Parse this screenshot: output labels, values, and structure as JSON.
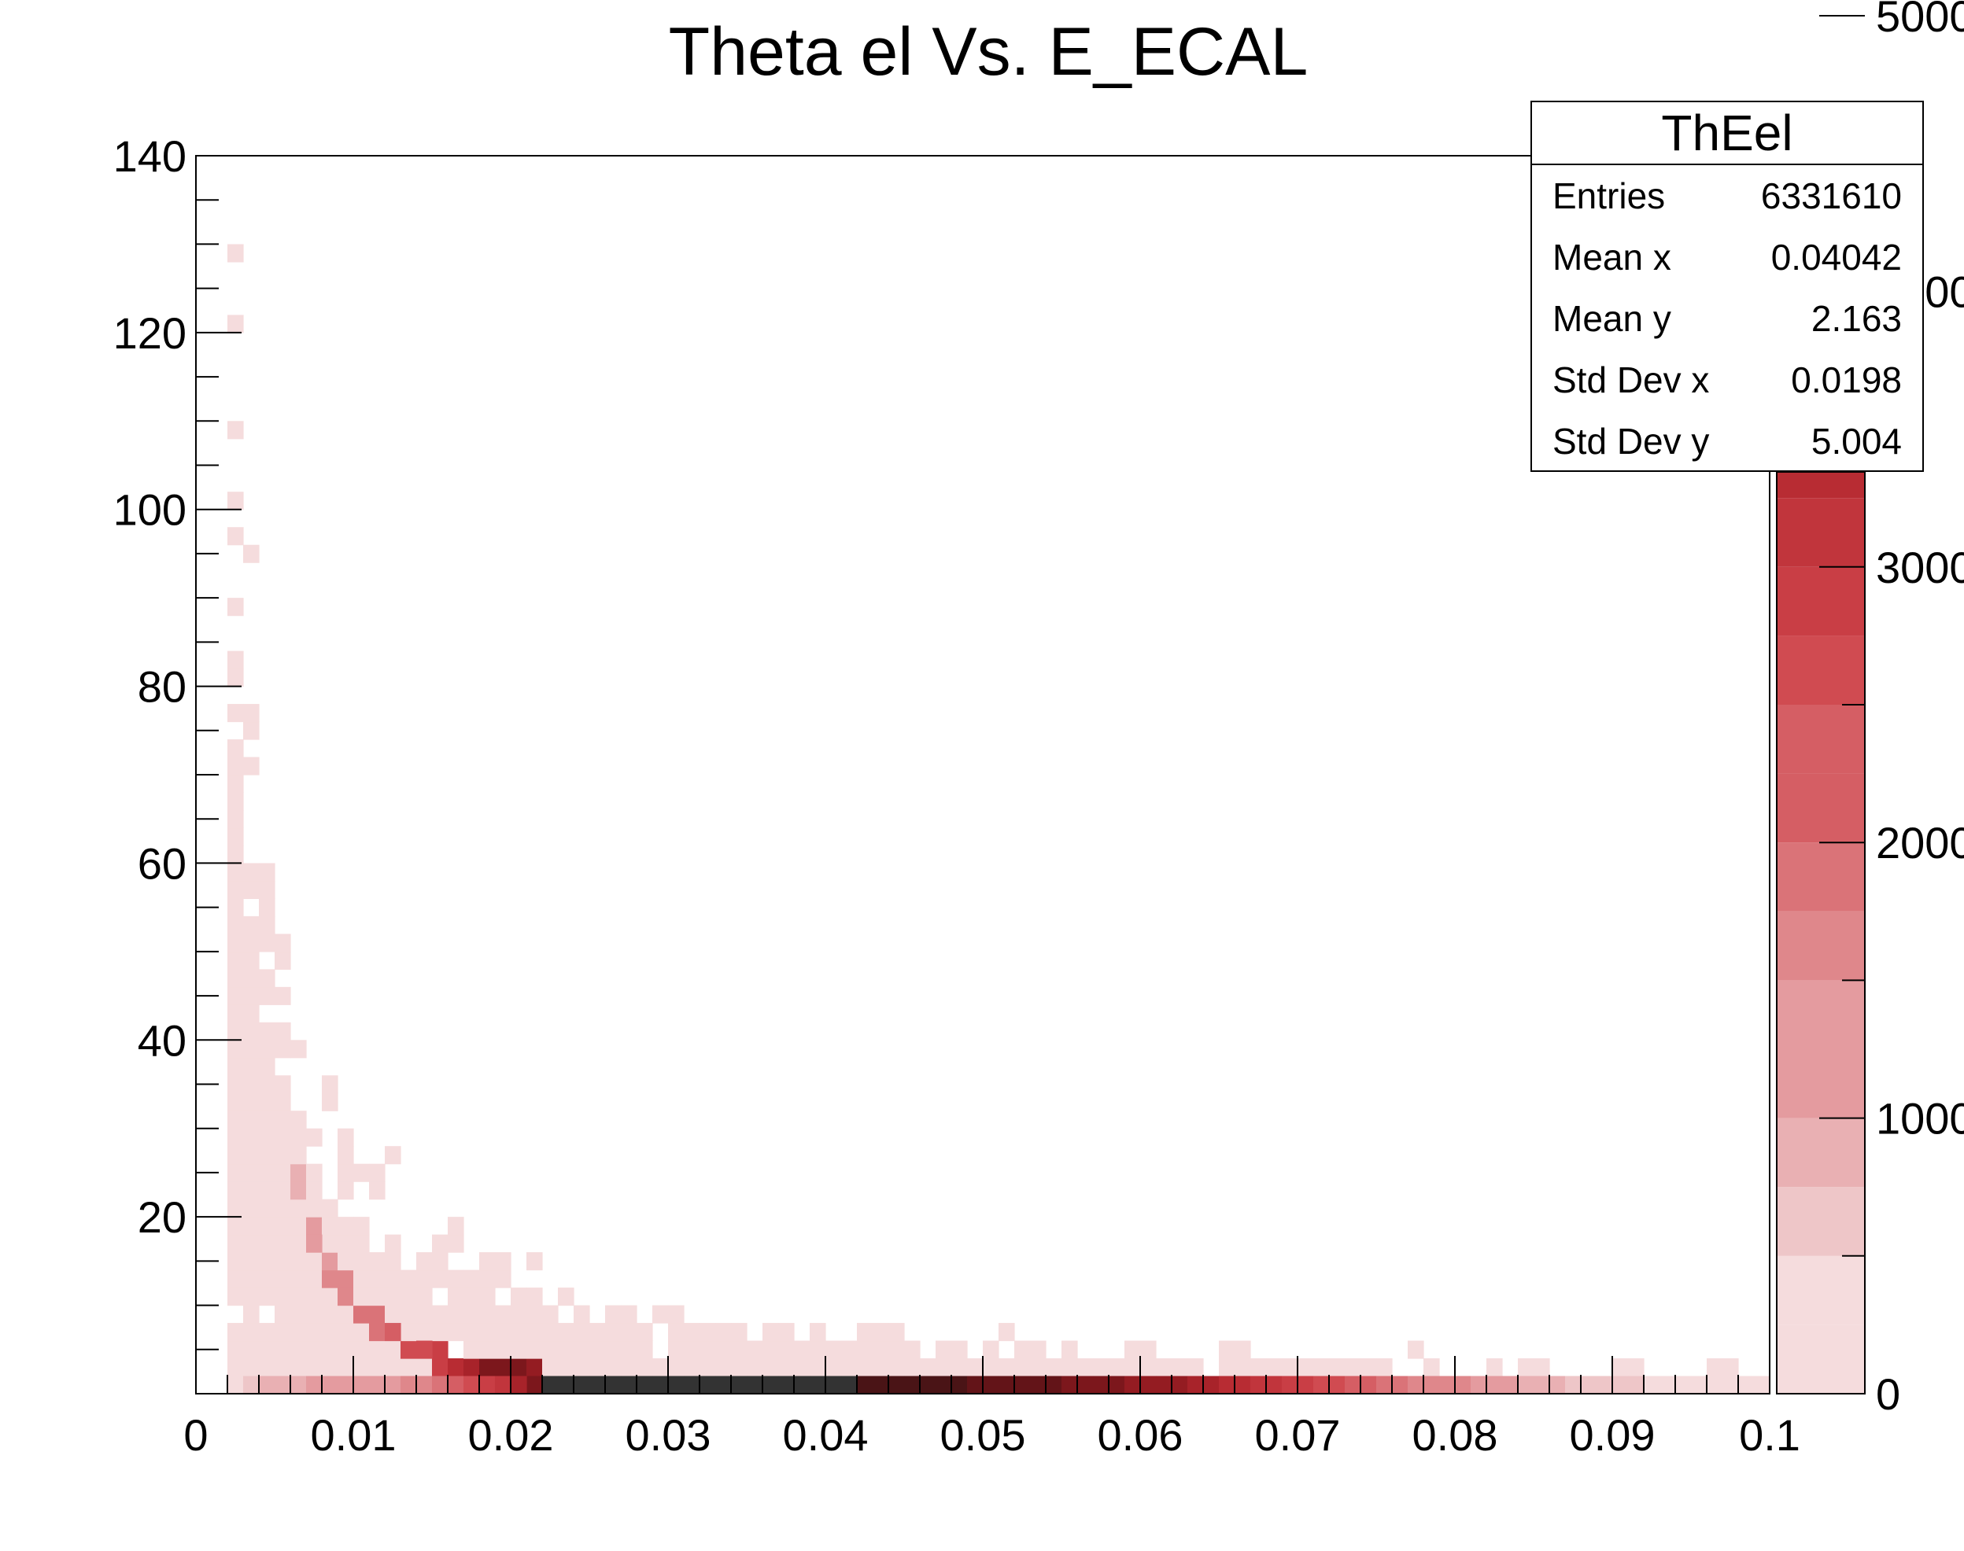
{
  "chart_data": {
    "type": "heatmap",
    "title": "Theta el Vs. E_ECAL",
    "xlabel": "",
    "ylabel": "",
    "xlim": [
      0,
      0.1
    ],
    "ylim": [
      0,
      140
    ],
    "x_ticks": [
      "0",
      "0.01",
      "0.02",
      "0.03",
      "0.04",
      "0.05",
      "0.06",
      "0.07",
      "0.08",
      "0.09",
      "0.1"
    ],
    "y_ticks": [
      "20",
      "40",
      "60",
      "80",
      "100",
      "120",
      "140"
    ],
    "z_range": [
      0,
      5000
    ],
    "z_ticks": [
      "0",
      "1000",
      "2000",
      "3000",
      "4000",
      "5000"
    ],
    "bins": {
      "nx": 100,
      "ny": 70
    },
    "palette": [
      "#f5dcdd",
      "#eec6c8",
      "#e9b0b3",
      "#e49b9f",
      "#df878b",
      "#da7378",
      "#d55e64",
      "#d04b51",
      "#c93e45",
      "#c1353c",
      "#b82c33",
      "#a8232a",
      "#941c22",
      "#7c171c",
      "#631418",
      "#4a1416",
      "#333333"
    ],
    "bottom_row_counts": [
      0,
      0,
      250,
      480,
      700,
      820,
      900,
      950,
      980,
      1000,
      1050,
      1100,
      1200,
      1350,
      1500,
      1700,
      1950,
      2250,
      2600,
      3000,
      3500,
      4200,
      5100,
      6000,
      6400,
      6500,
      6500,
      6500,
      6400,
      6300,
      6200,
      6100,
      5900,
      5800,
      5700,
      5600,
      5500,
      5400,
      5300,
      5200,
      5100,
      5050,
      5000,
      4950,
      4900,
      4850,
      4800,
      4750,
      4700,
      4650,
      4600,
      4550,
      4500,
      4450,
      4400,
      4350,
      4300,
      4250,
      4150,
      4050,
      3950,
      3850,
      3750,
      3600,
      3450,
      3300,
      3150,
      3000,
      2850,
      2700,
      2550,
      2400,
      2250,
      2100,
      1950,
      1800,
      1650,
      1550,
      1450,
      1350,
      1250,
      1150,
      1050,
      950,
      850,
      750,
      650,
      570,
      500,
      440,
      380,
      330,
      280,
      240,
      200,
      160,
      130,
      100,
      80,
      60
    ],
    "ridge": [
      {
        "x": 0.006,
        "y": 25,
        "z": 800
      },
      {
        "x": 0.0065,
        "y": 22,
        "z": 900
      },
      {
        "x": 0.007,
        "y": 19,
        "z": 1000
      },
      {
        "x": 0.0075,
        "y": 17,
        "z": 1050
      },
      {
        "x": 0.008,
        "y": 15,
        "z": 1150
      },
      {
        "x": 0.0085,
        "y": 13,
        "z": 1300
      },
      {
        "x": 0.009,
        "y": 12,
        "z": 1400
      },
      {
        "x": 0.0095,
        "y": 11,
        "z": 1500
      },
      {
        "x": 0.01,
        "y": 9,
        "z": 1600
      },
      {
        "x": 0.0105,
        "y": 9,
        "z": 1650
      },
      {
        "x": 0.011,
        "y": 8,
        "z": 1700
      },
      {
        "x": 0.0115,
        "y": 7,
        "z": 1800
      },
      {
        "x": 0.012,
        "y": 7,
        "z": 1900
      },
      {
        "x": 0.0125,
        "y": 6,
        "z": 2000
      },
      {
        "x": 0.013,
        "y": 5,
        "z": 2100
      },
      {
        "x": 0.0135,
        "y": 5,
        "z": 2200
      },
      {
        "x": 0.014,
        "y": 5,
        "z": 2300
      },
      {
        "x": 0.0145,
        "y": 5,
        "z": 2400
      },
      {
        "x": 0.015,
        "y": 4,
        "z": 2500
      },
      {
        "x": 0.0155,
        "y": 3,
        "z": 2700
      },
      {
        "x": 0.016,
        "y": 3,
        "z": 2900
      },
      {
        "x": 0.0165,
        "y": 3,
        "z": 3200
      },
      {
        "x": 0.017,
        "y": 3,
        "z": 3500
      },
      {
        "x": 0.0175,
        "y": 3,
        "z": 3700
      },
      {
        "x": 0.018,
        "y": 3,
        "z": 3900
      },
      {
        "x": 0.0185,
        "y": 3,
        "z": 4100
      },
      {
        "x": 0.019,
        "y": 3,
        "z": 4200
      },
      {
        "x": 0.0195,
        "y": 3,
        "z": 4300
      },
      {
        "x": 0.02,
        "y": 3,
        "z": 4400
      },
      {
        "x": 0.0205,
        "y": 3,
        "z": 4300
      },
      {
        "x": 0.021,
        "y": 3,
        "z": 4000
      },
      {
        "x": 0.0215,
        "y": 1,
        "z": 2500
      },
      {
        "x": 0.022,
        "y": 1,
        "z": 2000
      }
    ]
  },
  "stats": {
    "title": "ThEel",
    "rows": [
      {
        "label": "Entries",
        "value": "6331610"
      },
      {
        "label": "Mean x",
        "value": "0.04042"
      },
      {
        "label": "Mean y",
        "value": "2.163"
      },
      {
        "label": "Std Dev x",
        "value": "0.0198"
      },
      {
        "label": "Std Dev y",
        "value": "5.004"
      }
    ]
  }
}
